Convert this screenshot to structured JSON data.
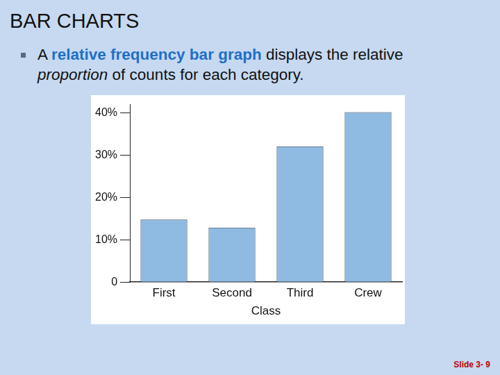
{
  "title": "BAR CHARTS",
  "bullet": [
    {
      "text": "A "
    },
    {
      "text": "relative frequency bar graph",
      "style": "bold"
    },
    {
      "text": " displays the relative "
    },
    {
      "text": "proportion",
      "style": "italic"
    },
    {
      "text": " of counts for each category."
    }
  ],
  "footer": "Slide 3- 9",
  "chart_data": {
    "type": "bar",
    "x_label": "Class",
    "categories": [
      "First",
      "Second",
      "Third",
      "Crew"
    ],
    "values": [
      14.8,
      12.9,
      32.1,
      40.2
    ],
    "color": "#8fbbe3",
    "ylim": [
      0,
      42
    ],
    "yticks": [
      0,
      {
        "value": 10,
        "label": "10%"
      },
      {
        "value": 20,
        "label": "20%"
      },
      {
        "value": 30,
        "label": "30%"
      },
      {
        "value": 40,
        "label": "40%"
      }
    ],
    "grid": false
  }
}
